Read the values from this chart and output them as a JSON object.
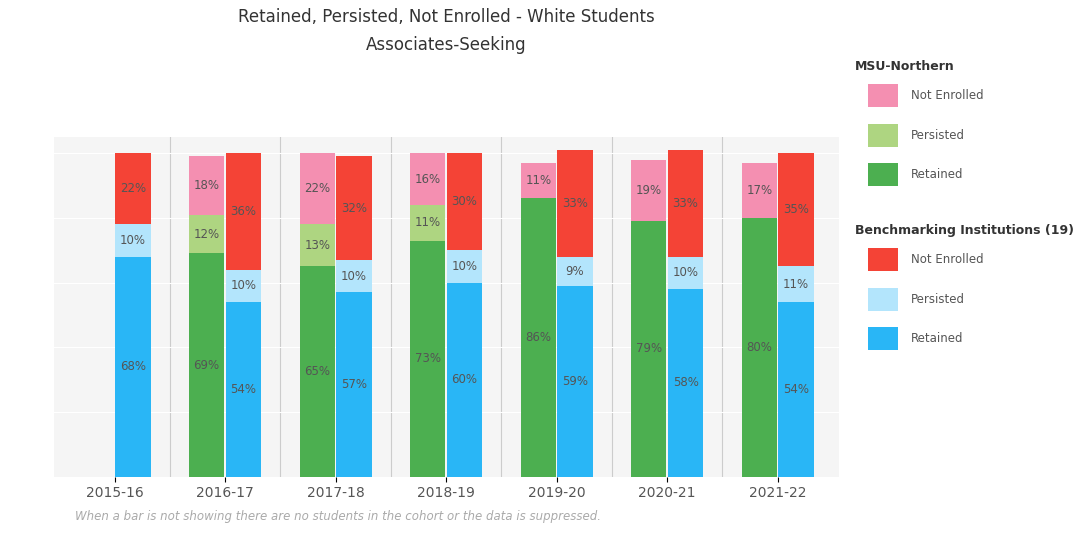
{
  "title_line1": "Retained, Persisted, Not Enrolled - White Students",
  "title_line2": "Associates-Seeking",
  "years": [
    "2015-16",
    "2016-17",
    "2017-18",
    "2018-19",
    "2019-20",
    "2020-21",
    "2021-22"
  ],
  "msu": {
    "retained": [
      0,
      69,
      65,
      73,
      86,
      79,
      80
    ],
    "persisted": [
      0,
      12,
      13,
      11,
      0,
      0,
      0
    ],
    "not_enrolled": [
      0,
      18,
      22,
      16,
      11,
      19,
      17
    ],
    "colors": {
      "retained": "#4caf50",
      "persisted": "#aed581",
      "not_enrolled": "#f48fb1"
    }
  },
  "bench": {
    "retained": [
      68,
      54,
      57,
      60,
      59,
      58,
      54
    ],
    "persisted": [
      10,
      10,
      10,
      10,
      9,
      10,
      11
    ],
    "not_enrolled": [
      22,
      36,
      32,
      30,
      33,
      33,
      35
    ],
    "colors": {
      "retained": "#29b6f6",
      "persisted": "#b3e5fc",
      "not_enrolled": "#f44336"
    }
  },
  "footnote": "When a bar is not showing there are no students in the cohort or the data is suppressed.",
  "bar_width": 0.32,
  "background_color": "#ffffff",
  "plot_bg": "#f5f5f5",
  "label_color_dark": "#555555",
  "label_color_white": "#ffffff"
}
